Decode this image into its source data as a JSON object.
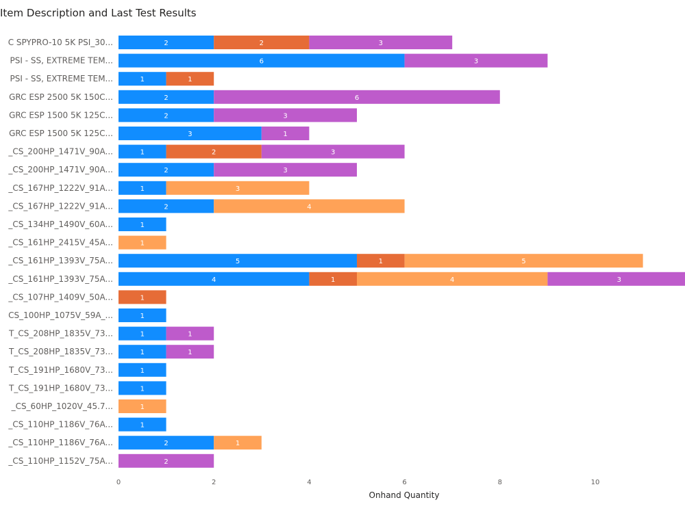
{
  "chart_data": {
    "type": "bar",
    "orientation": "horizontal",
    "stacked": true,
    "title": "Item Description and Last Test Results",
    "xlabel": "Onhand Quantity",
    "ylabel": "",
    "xlim": [
      0,
      12
    ],
    "xticks": [
      0,
      2,
      4,
      6,
      8,
      10
    ],
    "grid": false,
    "legend": "none",
    "categories": [
      "C SPYPRO-10 5K PSI_30...",
      "PSI - SS, EXTREME TEM...",
      "PSI - SS, EXTREME TEM...",
      "GRC ESP 2500 5K 150C...",
      "GRC ESP 1500 5K 125C...",
      "GRC ESP 1500 5K 125C...",
      "_CS_200HP_1471V_90A...",
      "_CS_200HP_1471V_90A...",
      "_CS_167HP_1222V_91A...",
      "_CS_167HP_1222V_91A...",
      "_CS_134HP_1490V_60A...",
      "_CS_161HP_2415V_45A...",
      "_CS_161HP_1393V_75A...",
      "_CS_161HP_1393V_75A...",
      "_CS_107HP_1409V_50A...",
      "CS_100HP_1075V_59A_...",
      "T_CS_208HP_1835V_73...",
      "T_CS_208HP_1835V_73...",
      "T_CS_191HP_1680V_73...",
      "T_CS_191HP_1680V_73...",
      "_CS_60HP_1020V_45.7...",
      "_CS_110HP_1186V_76A...",
      "_CS_110HP_1186V_76A...",
      "_CS_110HP_1152V_75A..."
    ],
    "series": [
      {
        "color": "#118DFF",
        "values": [
          2,
          6,
          1,
          2,
          2,
          3,
          1,
          2,
          1,
          2,
          1,
          0,
          5,
          4,
          0,
          1,
          1,
          1,
          1,
          1,
          0,
          1,
          2,
          0
        ]
      },
      {
        "color": "#E66C37",
        "values": [
          2,
          0,
          1,
          0,
          0,
          0,
          2,
          0,
          0,
          0,
          0,
          0,
          1,
          1,
          1,
          0,
          0,
          0,
          0,
          0,
          0,
          0,
          0,
          0
        ]
      },
      {
        "color": "#FFA257",
        "values": [
          0,
          0,
          0,
          0,
          0,
          0,
          0,
          0,
          3,
          4,
          0,
          1,
          5,
          4,
          0,
          0,
          0,
          0,
          0,
          0,
          1,
          0,
          1,
          0
        ]
      },
      {
        "color": "#BE5BCB",
        "values": [
          3,
          3,
          0,
          6,
          3,
          1,
          3,
          3,
          0,
          0,
          0,
          0,
          0,
          3,
          0,
          0,
          1,
          1,
          0,
          0,
          0,
          0,
          0,
          2
        ]
      }
    ]
  }
}
